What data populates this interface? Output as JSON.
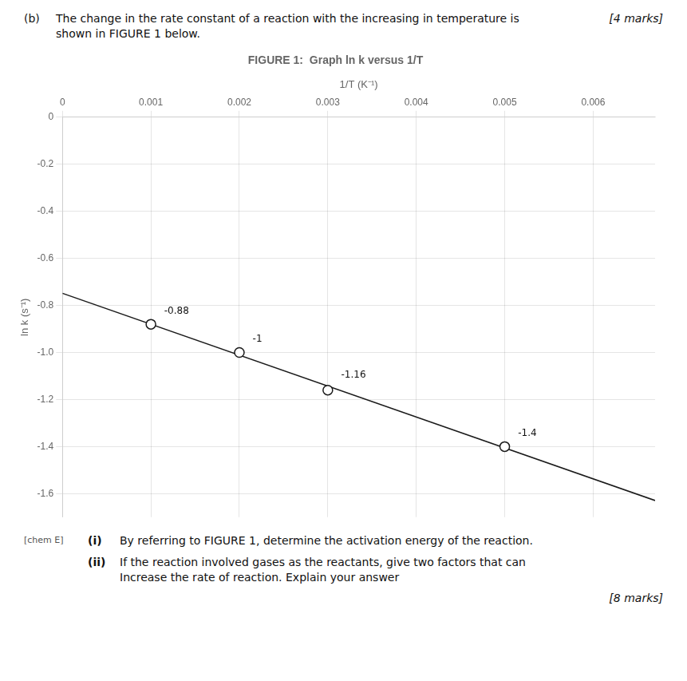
{
  "chart_data": {
    "type": "scatter",
    "title": "FIGURE 1:  Graph ln k versus 1/T",
    "x_label": "1/T (K⁻¹)",
    "y_label": "ln k (s⁻¹)",
    "xlim": [
      0,
      0.0067
    ],
    "ylim": [
      -1.7,
      0.0
    ],
    "xticks": [
      0,
      0.001,
      0.002,
      0.003,
      0.004,
      0.005,
      0.006
    ],
    "yticks": [
      0,
      -0.2,
      -0.4,
      -0.6,
      -0.8,
      {
        "value": -1.0,
        "label": "-1.0"
      },
      -1.2,
      -1.4,
      -1.6
    ],
    "grid": true,
    "series": [
      {
        "type": "scatter",
        "marker": "circle",
        "color": "#1a1a1a",
        "x": [
          0.001,
          0.002,
          0.003,
          0.005
        ],
        "values": [
          -0.88,
          -1.0,
          -1.16,
          -1.4
        ]
      },
      {
        "type": "line",
        "color": "#1a1a1a",
        "x": [
          0.0,
          0.0067
        ],
        "values": [
          -0.7485714285714286,
          -1.629142857142857
        ]
      }
    ],
    "annotations": [
      {
        "text": "-0.88",
        "x": 0.00115,
        "y": -0.845
      },
      {
        "text": "-1",
        "x": 0.00215,
        "y": -0.965
      },
      {
        "text": "-1.16",
        "x": 0.00315,
        "y": -1.115
      },
      {
        "text": "-1.4",
        "x": 0.00515,
        "y": -1.365
      }
    ],
    "header": {
      "label": "(b)",
      "text": "The change in the rate constant of a reaction with the increasing in temperature is\nshown in FIGURE 1 below.",
      "marks": "[4 marks]"
    },
    "footer": {
      "chem_label": "[chem E]",
      "questions": [
        {
          "label": "(i)",
          "text": "By referring to FIGURE 1, determine the activation energy of the reaction."
        },
        {
          "label": "(ii)",
          "text": "If the reaction involved gases as the reactants, give two factors that can\nIncrease the rate of reaction. Explain your answer"
        }
      ],
      "marks": "[8 marks]"
    }
  }
}
